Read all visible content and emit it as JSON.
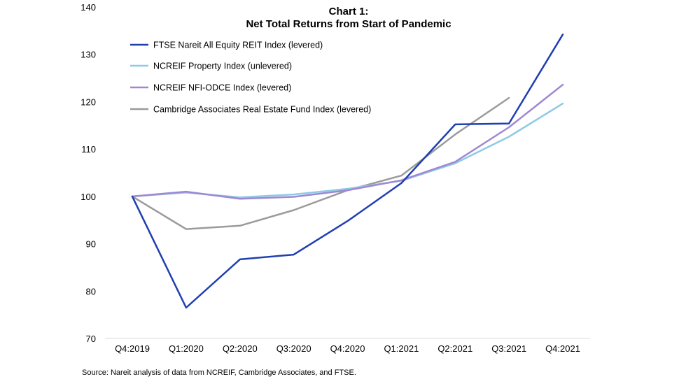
{
  "chart_data": {
    "type": "line",
    "title": "Chart 1:",
    "subtitle": "Net Total Returns from Start of Pandemic",
    "xlabel": "",
    "ylabel": "",
    "categories": [
      "Q4:2019",
      "Q1:2020",
      "Q2:2020",
      "Q3:2020",
      "Q4:2020",
      "Q1:2021",
      "Q2:2021",
      "Q3:2021",
      "Q4:2021"
    ],
    "ylim": [
      70,
      140
    ],
    "yticks": [
      70,
      80,
      90,
      100,
      110,
      120,
      130,
      140
    ],
    "grid": false,
    "legend_position": "top-left",
    "series": [
      {
        "name": "FTSE Nareit All Equity REIT Index (levered)",
        "color": "#1f3fb0",
        "values": [
          100,
          76.5,
          86.7,
          87.7,
          94.8,
          102.8,
          115.2,
          115.4,
          134.2
        ]
      },
      {
        "name": "NCREIF Property Index (unlevered)",
        "color": "#8ecae6",
        "values": [
          100,
          100.8,
          99.8,
          100.4,
          101.6,
          103.3,
          107.0,
          112.6,
          119.6
        ]
      },
      {
        "name": "NCREIF NFI-ODCE Index (levered)",
        "color": "#9f88d2",
        "values": [
          100,
          101.0,
          99.5,
          99.9,
          101.3,
          103.4,
          107.3,
          114.6,
          123.6
        ]
      },
      {
        "name": "Cambridge Associates Real Estate Fund Index (levered)",
        "color": "#9b9b9b",
        "values": [
          100,
          93.1,
          93.8,
          97.1,
          101.3,
          104.4,
          113.1,
          120.8,
          null
        ]
      }
    ],
    "source_note": "Source: Nareit analysis of data from NCREIF, Cambridge Associates, and FTSE."
  }
}
